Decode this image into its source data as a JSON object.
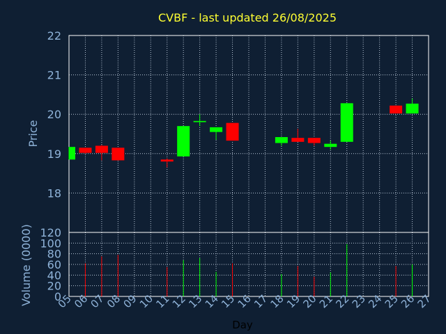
{
  "chart_data": {
    "type": "candlestick",
    "title": "CVBF - last updated 26/08/2025",
    "xlabel": "Day",
    "price_ylabel": "Price",
    "volume_ylabel": "Volume (0000)",
    "x_ticks": [
      "05",
      "06",
      "07",
      "08",
      "09",
      "10",
      "11",
      "12",
      "13",
      "14",
      "15",
      "16",
      "17",
      "18",
      "19",
      "20",
      "21",
      "22",
      "23",
      "24",
      "25",
      "26",
      "27"
    ],
    "price_ylim": [
      17,
      22
    ],
    "price_ticks": [
      "18",
      "19",
      "20",
      "21",
      "22"
    ],
    "volume_ylim": [
      0,
      120
    ],
    "volume_ticks": [
      "0",
      "20",
      "40",
      "60",
      "80",
      "100",
      "120"
    ],
    "grid": true,
    "colors": {
      "up": "#00ff00",
      "down": "#ff0000",
      "background": "#0f1f33",
      "title": "#ffff33"
    },
    "candles": [
      {
        "day": "05",
        "open": 18.85,
        "close": 19.17,
        "high": 19.17,
        "low": 18.85,
        "volume": 0
      },
      {
        "day": "06",
        "open": 19.15,
        "close": 19.02,
        "high": 19.15,
        "low": 19.0,
        "volume": 62
      },
      {
        "day": "07",
        "open": 19.2,
        "close": 19.02,
        "high": 19.22,
        "low": 18.83,
        "volume": 75
      },
      {
        "day": "08",
        "open": 19.15,
        "close": 18.83,
        "high": 19.15,
        "low": 18.83,
        "volume": 78
      },
      {
        "day": "11",
        "open": 18.85,
        "close": 18.8,
        "high": 18.88,
        "low": 18.65,
        "volume": 55
      },
      {
        "day": "12",
        "open": 18.93,
        "close": 19.7,
        "high": 19.7,
        "low": 18.93,
        "volume": 68
      },
      {
        "day": "13",
        "open": 19.8,
        "close": 19.83,
        "high": 20.0,
        "low": 19.7,
        "volume": 72
      },
      {
        "day": "14",
        "open": 19.55,
        "close": 19.67,
        "high": 19.67,
        "low": 19.35,
        "volume": 46
      },
      {
        "day": "15",
        "open": 19.78,
        "close": 19.33,
        "high": 19.78,
        "low": 19.33,
        "volume": 62
      },
      {
        "day": "18",
        "open": 19.27,
        "close": 19.42,
        "high": 19.42,
        "low": 19.2,
        "volume": 42
      },
      {
        "day": "19",
        "open": 19.4,
        "close": 19.3,
        "high": 19.63,
        "low": 19.3,
        "volume": 57
      },
      {
        "day": "20",
        "open": 19.4,
        "close": 19.27,
        "high": 19.4,
        "low": 19.2,
        "volume": 37
      },
      {
        "day": "21",
        "open": 19.17,
        "close": 19.25,
        "high": 19.33,
        "low": 19.1,
        "volume": 45
      },
      {
        "day": "22",
        "open": 19.3,
        "close": 20.28,
        "high": 20.28,
        "low": 19.3,
        "volume": 98
      },
      {
        "day": "25",
        "open": 20.22,
        "close": 20.02,
        "high": 20.22,
        "low": 20.02,
        "volume": 57
      },
      {
        "day": "26",
        "open": 20.02,
        "close": 20.27,
        "high": 20.4,
        "low": 20.02,
        "volume": 60
      }
    ]
  }
}
